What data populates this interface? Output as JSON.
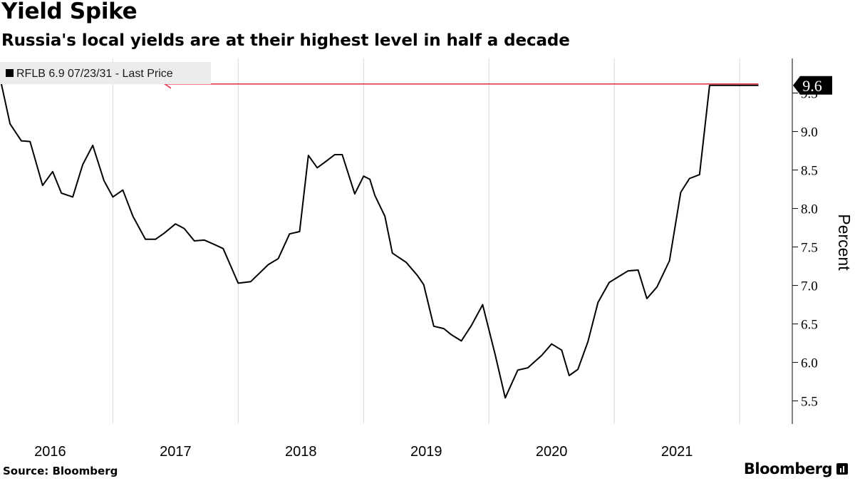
{
  "header": {
    "title": "Yield Spike",
    "subtitle": "Russia's local yields are at their highest level in half a decade"
  },
  "footer": {
    "source": "Source: Bloomberg",
    "brand": "Bloomberg",
    "brand_icon": "bar-chart-icon"
  },
  "colors": {
    "line": "#000000",
    "grid": "#d9d9d9",
    "accent": "#e8384f",
    "legend_bg": "#ececec",
    "callout_bg": "#000000",
    "callout_text": "#ffffff"
  },
  "chart_data": {
    "type": "line",
    "title": "Yield Spike",
    "subtitle": "Russia's local yields are at their highest level in half a decade",
    "xlabel": "",
    "ylabel": "Percent",
    "ylim": [
      5.2,
      9.95
    ],
    "xlim": [
      2015.6,
      2021.92
    ],
    "yticks": [
      5.5,
      6.0,
      6.5,
      7.0,
      7.5,
      8.0,
      8.5,
      9.0,
      9.5
    ],
    "ytick_labels": [
      "5.5",
      "6.0",
      "6.5",
      "7.0",
      "7.5",
      "8.0",
      "8.5",
      "9.0",
      "9.5"
    ],
    "xtick_labels": [
      "2016",
      "2017",
      "2018",
      "2019",
      "2020",
      "2021"
    ],
    "xlabel_positions": [
      2016.0,
      2017.0,
      2018.0,
      2019.0,
      2020.0,
      2021.0
    ],
    "year_boundaries": [
      2016.5,
      2017.5,
      2018.5,
      2019.5,
      2020.5,
      2021.5
    ],
    "grid": "vertical",
    "legend": {
      "label": "RFLB 6.9 07/23/31 - Last Price",
      "placement": "top-left"
    },
    "last_value": 9.6,
    "last_value_label": "9.6",
    "series": [
      {
        "name": "RFLB 6.9 07/23/31 - Last Price",
        "x": [
          2015.6,
          2015.68,
          2015.77,
          2015.84,
          2015.94,
          2016.02,
          2016.09,
          2016.18,
          2016.26,
          2016.34,
          2016.43,
          2016.5,
          2016.58,
          2016.66,
          2016.76,
          2016.84,
          2016.91,
          2017.0,
          2017.07,
          2017.15,
          2017.23,
          2017.3,
          2017.38,
          2017.5,
          2017.6,
          2017.74,
          2017.82,
          2017.91,
          2017.99,
          2018.06,
          2018.13,
          2018.19,
          2018.27,
          2018.33,
          2018.43,
          2018.5,
          2018.55,
          2018.59,
          2018.67,
          2018.73,
          2018.84,
          2018.93,
          2018.98,
          2019.06,
          2019.14,
          2019.2,
          2019.28,
          2019.36,
          2019.45,
          2019.55,
          2019.63,
          2019.73,
          2019.81,
          2019.92,
          2020.0,
          2020.08,
          2020.14,
          2020.21,
          2020.29,
          2020.37,
          2020.46,
          2020.54,
          2020.61,
          2020.69,
          2020.76,
          2020.84,
          2020.94,
          2021.03,
          2021.1,
          2021.18,
          2021.26,
          2021.34,
          2021.42,
          2021.52,
          2021.59,
          2021.65
        ],
        "values": [
          9.7,
          9.1,
          8.88,
          8.87,
          8.3,
          8.48,
          8.2,
          8.15,
          8.57,
          8.82,
          8.36,
          8.15,
          8.24,
          7.9,
          7.6,
          7.6,
          7.68,
          7.8,
          7.74,
          7.58,
          7.59,
          7.54,
          7.48,
          7.03,
          7.05,
          7.27,
          7.35,
          7.67,
          7.7,
          8.69,
          8.53,
          8.6,
          8.7,
          8.7,
          8.19,
          8.42,
          8.38,
          8.17,
          7.9,
          7.42,
          7.3,
          7.13,
          7.01,
          6.47,
          6.44,
          6.36,
          6.28,
          6.48,
          6.75,
          6.1,
          5.54,
          5.9,
          5.93,
          6.09,
          6.24,
          6.16,
          5.83,
          5.91,
          6.27,
          6.78,
          7.04,
          7.12,
          7.19,
          7.2,
          6.83,
          6.98,
          7.32,
          8.21,
          8.39,
          8.44,
          9.6,
          9.6,
          9.6,
          9.6,
          9.6,
          9.6
        ]
      }
    ]
  }
}
